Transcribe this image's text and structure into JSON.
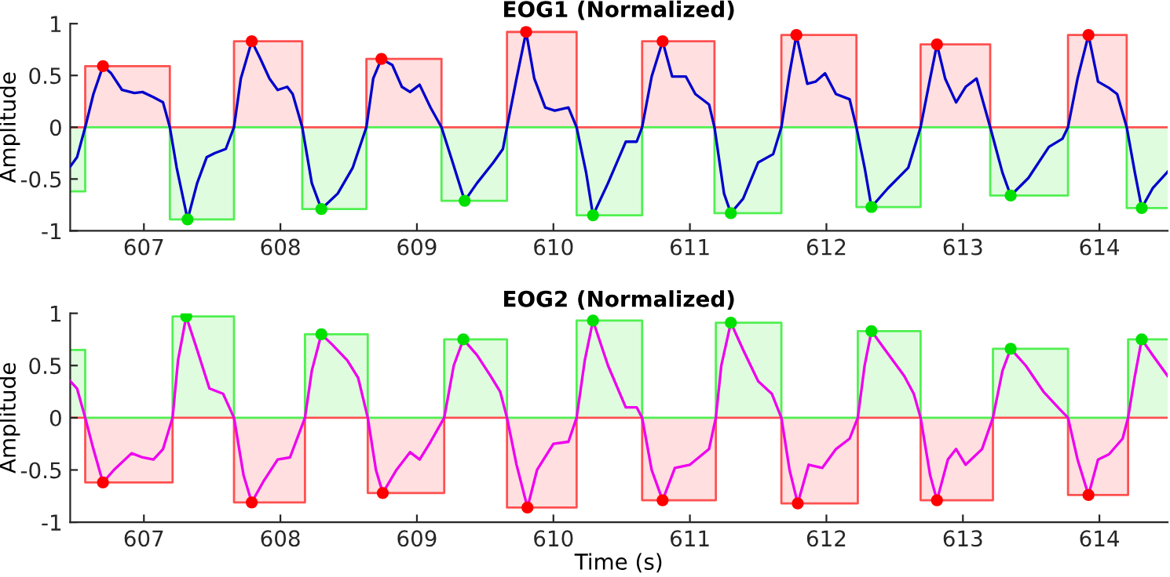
{
  "chart_data": [
    {
      "type": "line",
      "title": "EOG1 (Normalized)",
      "ylabel": "Amplitude",
      "xlim": [
        606.46,
        614.5
      ],
      "ylim": [
        -1,
        1
      ],
      "xticks": [
        607,
        608,
        609,
        610,
        611,
        612,
        613,
        614
      ],
      "yticks": [
        -1,
        -0.5,
        0,
        0.5,
        1
      ],
      "grid": false,
      "series": [
        {
          "type": "step",
          "color": "#50f050",
          "x": [
            606.46,
            606.57,
            607.19,
            607.66,
            608.16,
            608.63,
            609.18,
            609.66,
            610.17,
            610.65,
            611.18,
            611.67,
            612.22,
            612.69,
            613.2,
            613.77,
            614.2,
            614.5
          ],
          "values": [
            -0.62,
            0,
            -0.89,
            0,
            -0.79,
            0,
            -0.71,
            0,
            -0.85,
            0,
            -0.83,
            0,
            -0.77,
            0,
            -0.66,
            0,
            -0.78,
            -0.78
          ]
        },
        {
          "type": "step",
          "color": "#ff5050",
          "x": [
            606.46,
            606.57,
            607.19,
            607.66,
            608.16,
            608.63,
            609.18,
            609.66,
            610.17,
            610.65,
            611.18,
            611.67,
            612.22,
            612.69,
            613.2,
            613.77,
            614.2,
            614.5
          ],
          "values": [
            0,
            0.59,
            0,
            0.83,
            0,
            0.66,
            0,
            0.92,
            0,
            0.83,
            0,
            0.89,
            0,
            0.8,
            0,
            0.89,
            0,
            0
          ]
        },
        {
          "color": "#0000cc",
          "marker": "none",
          "x": [
            606.46,
            606.51,
            606.57,
            606.63,
            606.7,
            606.76,
            606.84,
            606.93,
            606.99,
            607.07,
            607.14,
            607.19,
            607.24,
            607.32,
            607.39,
            607.46,
            607.52,
            607.6,
            607.66,
            607.71,
            607.79,
            607.85,
            607.92,
            607.98,
            608.05,
            608.09,
            608.16,
            608.23,
            608.3,
            608.42,
            608.53,
            608.63,
            608.68,
            608.74,
            608.82,
            608.89,
            608.95,
            609.02,
            609.1,
            609.18,
            609.25,
            609.35,
            609.44,
            609.56,
            609.63,
            609.66,
            609.73,
            609.8,
            609.86,
            609.94,
            610.01,
            610.11,
            610.17,
            610.24,
            610.29,
            610.4,
            610.53,
            610.61,
            610.65,
            610.72,
            610.8,
            610.87,
            610.97,
            611.04,
            611.14,
            611.18,
            611.25,
            611.3,
            611.39,
            611.5,
            611.61,
            611.67,
            611.73,
            611.78,
            611.86,
            611.92,
            611.99,
            612.07,
            612.17,
            612.22,
            612.28,
            612.33,
            612.45,
            612.6,
            612.69,
            612.76,
            612.81,
            612.87,
            612.95,
            613.02,
            613.1,
            613.2,
            613.29,
            613.35,
            613.48,
            613.63,
            613.73,
            613.77,
            613.84,
            613.92,
            613.99,
            614.07,
            614.13,
            614.2,
            614.26,
            614.31,
            614.39,
            614.5
          ],
          "values": [
            -0.38,
            -0.29,
            0,
            0.32,
            0.59,
            0.52,
            0.36,
            0.33,
            0.34,
            0.29,
            0.24,
            0,
            -0.39,
            -0.89,
            -0.54,
            -0.29,
            -0.25,
            -0.21,
            0,
            0.47,
            0.83,
            0.67,
            0.47,
            0.36,
            0.39,
            0.32,
            0,
            -0.54,
            -0.79,
            -0.64,
            -0.39,
            0,
            0.47,
            0.66,
            0.6,
            0.39,
            0.34,
            0.41,
            0.19,
            0,
            -0.29,
            -0.71,
            -0.54,
            -0.34,
            -0.21,
            0,
            0.47,
            0.92,
            0.47,
            0.19,
            0.16,
            0.19,
            0,
            -0.44,
            -0.85,
            -0.54,
            -0.14,
            -0.14,
            0,
            0.49,
            0.83,
            0.49,
            0.49,
            0.32,
            0.22,
            0,
            -0.64,
            -0.83,
            -0.69,
            -0.34,
            -0.26,
            0,
            0.52,
            0.89,
            0.42,
            0.44,
            0.52,
            0.32,
            0.27,
            0,
            -0.39,
            -0.77,
            -0.59,
            -0.39,
            0,
            0.47,
            0.8,
            0.47,
            0.24,
            0.39,
            0.47,
            0,
            -0.44,
            -0.66,
            -0.49,
            -0.19,
            -0.11,
            0,
            0.47,
            0.89,
            0.44,
            0.38,
            0.32,
            0,
            -0.44,
            -0.78,
            -0.59,
            -0.43
          ]
        },
        {
          "type": "scatter",
          "color": "#ff0000",
          "marker": "circle",
          "x": [
            606.7,
            607.79,
            608.74,
            609.8,
            610.8,
            611.78,
            612.81,
            613.92
          ],
          "values": [
            0.59,
            0.83,
            0.66,
            0.92,
            0.83,
            0.89,
            0.8,
            0.89
          ]
        },
        {
          "type": "scatter",
          "color": "#00e000",
          "marker": "circle",
          "x": [
            607.32,
            608.3,
            609.35,
            610.29,
            611.3,
            612.33,
            613.35,
            614.31
          ],
          "values": [
            -0.89,
            -0.79,
            -0.71,
            -0.85,
            -0.83,
            -0.77,
            -0.66,
            -0.78
          ]
        }
      ]
    },
    {
      "type": "line",
      "title": "EOG2 (Normalized)",
      "xlabel": "Time (s)",
      "ylabel": "Amplitude",
      "xlim": [
        606.46,
        614.5
      ],
      "ylim": [
        -1,
        1
      ],
      "xticks": [
        607,
        608,
        609,
        610,
        611,
        612,
        613,
        614
      ],
      "yticks": [
        -1,
        -0.5,
        0,
        0.5,
        1
      ],
      "grid": false,
      "series": [
        {
          "type": "step",
          "color": "#50f050",
          "x": [
            606.46,
            606.57,
            607.21,
            607.66,
            608.18,
            608.64,
            609.2,
            609.66,
            610.17,
            610.65,
            611.19,
            611.67,
            612.23,
            612.69,
            613.22,
            613.77,
            614.21,
            614.5
          ],
          "values": [
            0.65,
            0,
            0.97,
            0,
            0.8,
            0,
            0.75,
            0,
            0.93,
            0,
            0.91,
            0,
            0.83,
            0,
            0.66,
            0,
            0.75,
            0.75
          ]
        },
        {
          "type": "step",
          "color": "#ff5050",
          "x": [
            606.46,
            606.57,
            607.21,
            607.66,
            608.18,
            608.64,
            609.2,
            609.66,
            610.17,
            610.65,
            611.19,
            611.67,
            612.23,
            612.69,
            613.22,
            613.77,
            614.21,
            614.5
          ],
          "values": [
            0,
            -0.62,
            0,
            -0.81,
            0,
            -0.72,
            0,
            -0.86,
            0,
            -0.79,
            0,
            -0.82,
            0,
            -0.79,
            0,
            -0.74,
            0,
            0
          ]
        },
        {
          "color": "#ee00ee",
          "marker": "none",
          "x": [
            606.46,
            606.51,
            606.57,
            606.63,
            606.7,
            606.78,
            606.91,
            606.99,
            607.07,
            607.14,
            607.21,
            607.25,
            607.31,
            607.39,
            607.48,
            607.58,
            607.66,
            607.73,
            607.79,
            607.88,
            607.98,
            608.07,
            608.18,
            608.23,
            608.3,
            608.38,
            608.49,
            608.57,
            608.64,
            608.7,
            608.75,
            608.85,
            608.95,
            609.02,
            609.1,
            609.2,
            609.27,
            609.34,
            609.44,
            609.54,
            609.61,
            609.66,
            609.73,
            609.81,
            609.88,
            610.0,
            610.11,
            610.17,
            610.23,
            610.29,
            610.4,
            610.53,
            610.61,
            610.65,
            610.72,
            610.8,
            610.89,
            611.0,
            611.14,
            611.19,
            611.23,
            611.3,
            611.39,
            611.5,
            611.6,
            611.67,
            611.73,
            611.79,
            611.87,
            611.97,
            612.07,
            612.17,
            612.23,
            612.28,
            612.33,
            612.43,
            612.57,
            612.64,
            612.69,
            612.76,
            612.81,
            612.89,
            612.95,
            613.02,
            613.14,
            613.22,
            613.29,
            613.35,
            613.46,
            613.59,
            613.71,
            613.77,
            613.84,
            613.92,
            613.99,
            614.07,
            614.17,
            614.21,
            614.26,
            614.31,
            614.39,
            614.5
          ],
          "values": [
            0.35,
            0.28,
            0,
            -0.3,
            -0.62,
            -0.5,
            -0.34,
            -0.38,
            -0.4,
            -0.3,
            0,
            0.55,
            0.97,
            0.65,
            0.28,
            0.23,
            0,
            -0.55,
            -0.81,
            -0.6,
            -0.4,
            -0.38,
            0,
            0.45,
            0.8,
            0.7,
            0.55,
            0.38,
            0,
            -0.5,
            -0.72,
            -0.5,
            -0.33,
            -0.4,
            -0.23,
            0,
            0.5,
            0.75,
            0.6,
            0.4,
            0.25,
            0,
            -0.45,
            -0.86,
            -0.5,
            -0.25,
            -0.23,
            0,
            0.55,
            0.93,
            0.5,
            0.1,
            0.1,
            0,
            -0.5,
            -0.79,
            -0.48,
            -0.45,
            -0.3,
            0,
            0.5,
            0.91,
            0.65,
            0.35,
            0.23,
            0,
            -0.5,
            -0.82,
            -0.45,
            -0.48,
            -0.3,
            -0.2,
            0,
            0.5,
            0.83,
            0.65,
            0.4,
            0.23,
            0,
            -0.55,
            -0.79,
            -0.4,
            -0.3,
            -0.45,
            -0.3,
            0,
            0.45,
            0.66,
            0.5,
            0.25,
            0.08,
            0,
            -0.4,
            -0.74,
            -0.4,
            -0.35,
            -0.2,
            0,
            0.4,
            0.75,
            0.6,
            0.4
          ]
        },
        {
          "type": "scatter",
          "color": "#ff0000",
          "marker": "circle",
          "x": [
            606.7,
            607.79,
            608.75,
            609.81,
            610.8,
            611.79,
            612.81,
            613.92
          ],
          "values": [
            -0.62,
            -0.81,
            -0.72,
            -0.86,
            -0.79,
            -0.82,
            -0.79,
            -0.74
          ]
        },
        {
          "type": "scatter",
          "color": "#00e000",
          "marker": "circle",
          "x": [
            607.31,
            608.3,
            609.34,
            610.29,
            611.3,
            612.33,
            613.35,
            614.31
          ],
          "values": [
            0.97,
            0.8,
            0.75,
            0.93,
            0.91,
            0.83,
            0.66,
            0.75
          ]
        }
      ]
    }
  ]
}
